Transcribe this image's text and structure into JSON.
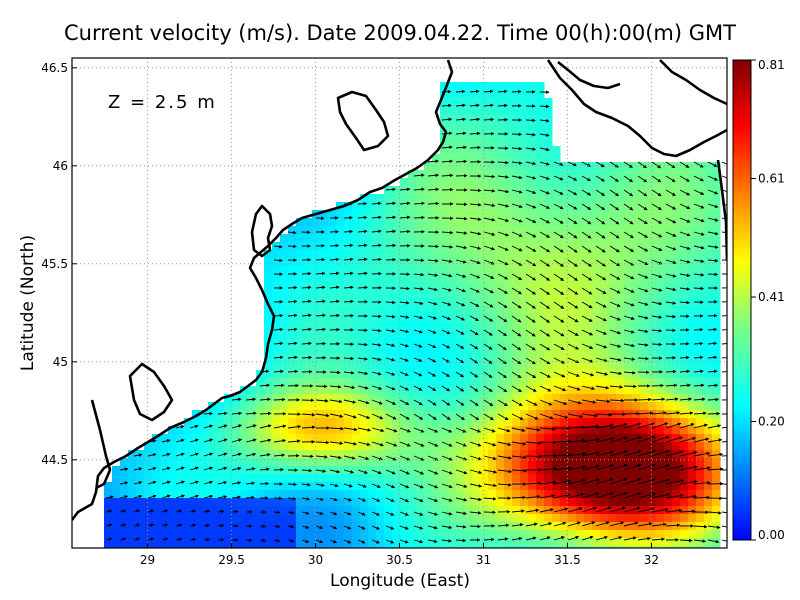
{
  "title": "Current velocity (m/s). Date 2009.04.22. Time 00(h):00(m) GMT",
  "depth_label": "Z = 2.5 m",
  "colors": {
    "land": "#ffffff",
    "coast": "#000000",
    "arrows": "#000000",
    "scale": [
      "#0000ff",
      "#0080ff",
      "#00ffff",
      "#80ff80",
      "#ffff00",
      "#ff8000",
      "#ff0000",
      "#800000"
    ]
  },
  "chart_data": {
    "type": "heatmap",
    "xlabel": "Longitude (East)",
    "ylabel": "Latitude (North)",
    "xlim": [
      28.55,
      32.45
    ],
    "ylim": [
      44.05,
      46.55
    ],
    "xticks": [
      {
        "value": 29,
        "label": "29"
      },
      {
        "value": 29.5,
        "label": "29.5"
      },
      {
        "value": 30,
        "label": "30"
      },
      {
        "value": 30.5,
        "label": "30.5"
      },
      {
        "value": 31,
        "label": "31"
      },
      {
        "value": 31.5,
        "label": "31.5"
      },
      {
        "value": 32,
        "label": "32"
      }
    ],
    "yticks": [
      {
        "value": 44.5,
        "label": "44.5"
      },
      {
        "value": 45,
        "label": "45"
      },
      {
        "value": 45.5,
        "label": "45.5"
      },
      {
        "value": 46,
        "label": "46"
      },
      {
        "value": 46.5,
        "label": "46.5"
      }
    ],
    "grid": true,
    "colorbar": {
      "min": 0.0,
      "max": 0.81,
      "ticks": [
        {
          "value": 0.0,
          "label": "0.00"
        },
        {
          "value": 0.2,
          "label": "0.20"
        },
        {
          "value": 0.41,
          "label": "0.41"
        },
        {
          "value": 0.61,
          "label": "0.61"
        },
        {
          "value": 0.81,
          "label": "0.81"
        }
      ]
    }
  }
}
